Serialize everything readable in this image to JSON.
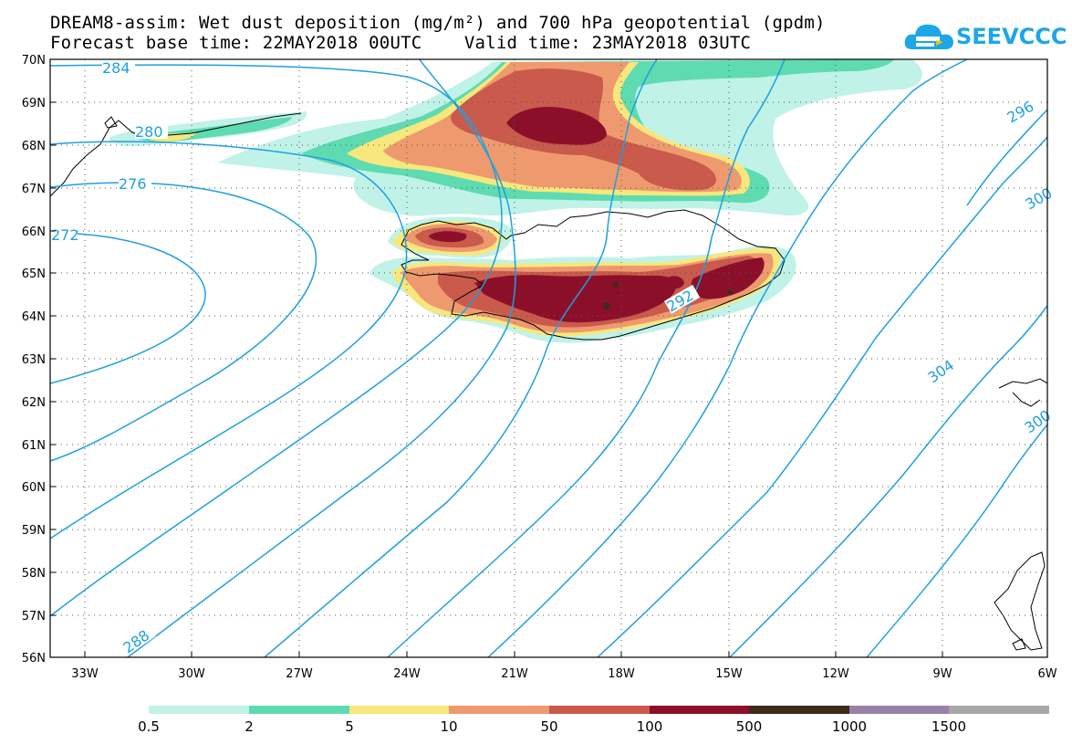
{
  "title": {
    "line1": "DREAM8-assim: Wet dust deposition (mg/m²) and 700 hPa geopotential (gpdm)",
    "line2": "Forecast base time: 22MAY2018 00UTC    Valid time: 23MAY2018 03UTC"
  },
  "logo": {
    "text": "SEEVCCC",
    "color": "#1da6e8"
  },
  "axes": {
    "lat_labels": [
      "70N",
      "69N",
      "68N",
      "67N",
      "66N",
      "65N",
      "64N",
      "63N",
      "62N",
      "61N",
      "60N",
      "59N",
      "58N",
      "57N",
      "56N"
    ],
    "lon_labels": [
      "33W",
      "30W",
      "27W",
      "24W",
      "21W",
      "18W",
      "15W",
      "12W",
      "9W",
      "6W"
    ]
  },
  "legend": {
    "labels": [
      "0.5",
      "2",
      "5",
      "10",
      "50",
      "100",
      "500",
      "1000",
      "1500"
    ],
    "colors": [
      "#c0f2e8",
      "#5edbb0",
      "#f7e77c",
      "#ee9a6e",
      "#c95a4c",
      "#8c0f2a",
      "#3e2b1a",
      "#9b80a8",
      "#a8a8a8"
    ]
  },
  "contours": {
    "color": "#1f9fe0",
    "labels": [
      "284",
      "280",
      "276",
      "272",
      "288",
      "292",
      "296",
      "300",
      "304",
      "300"
    ]
  }
}
